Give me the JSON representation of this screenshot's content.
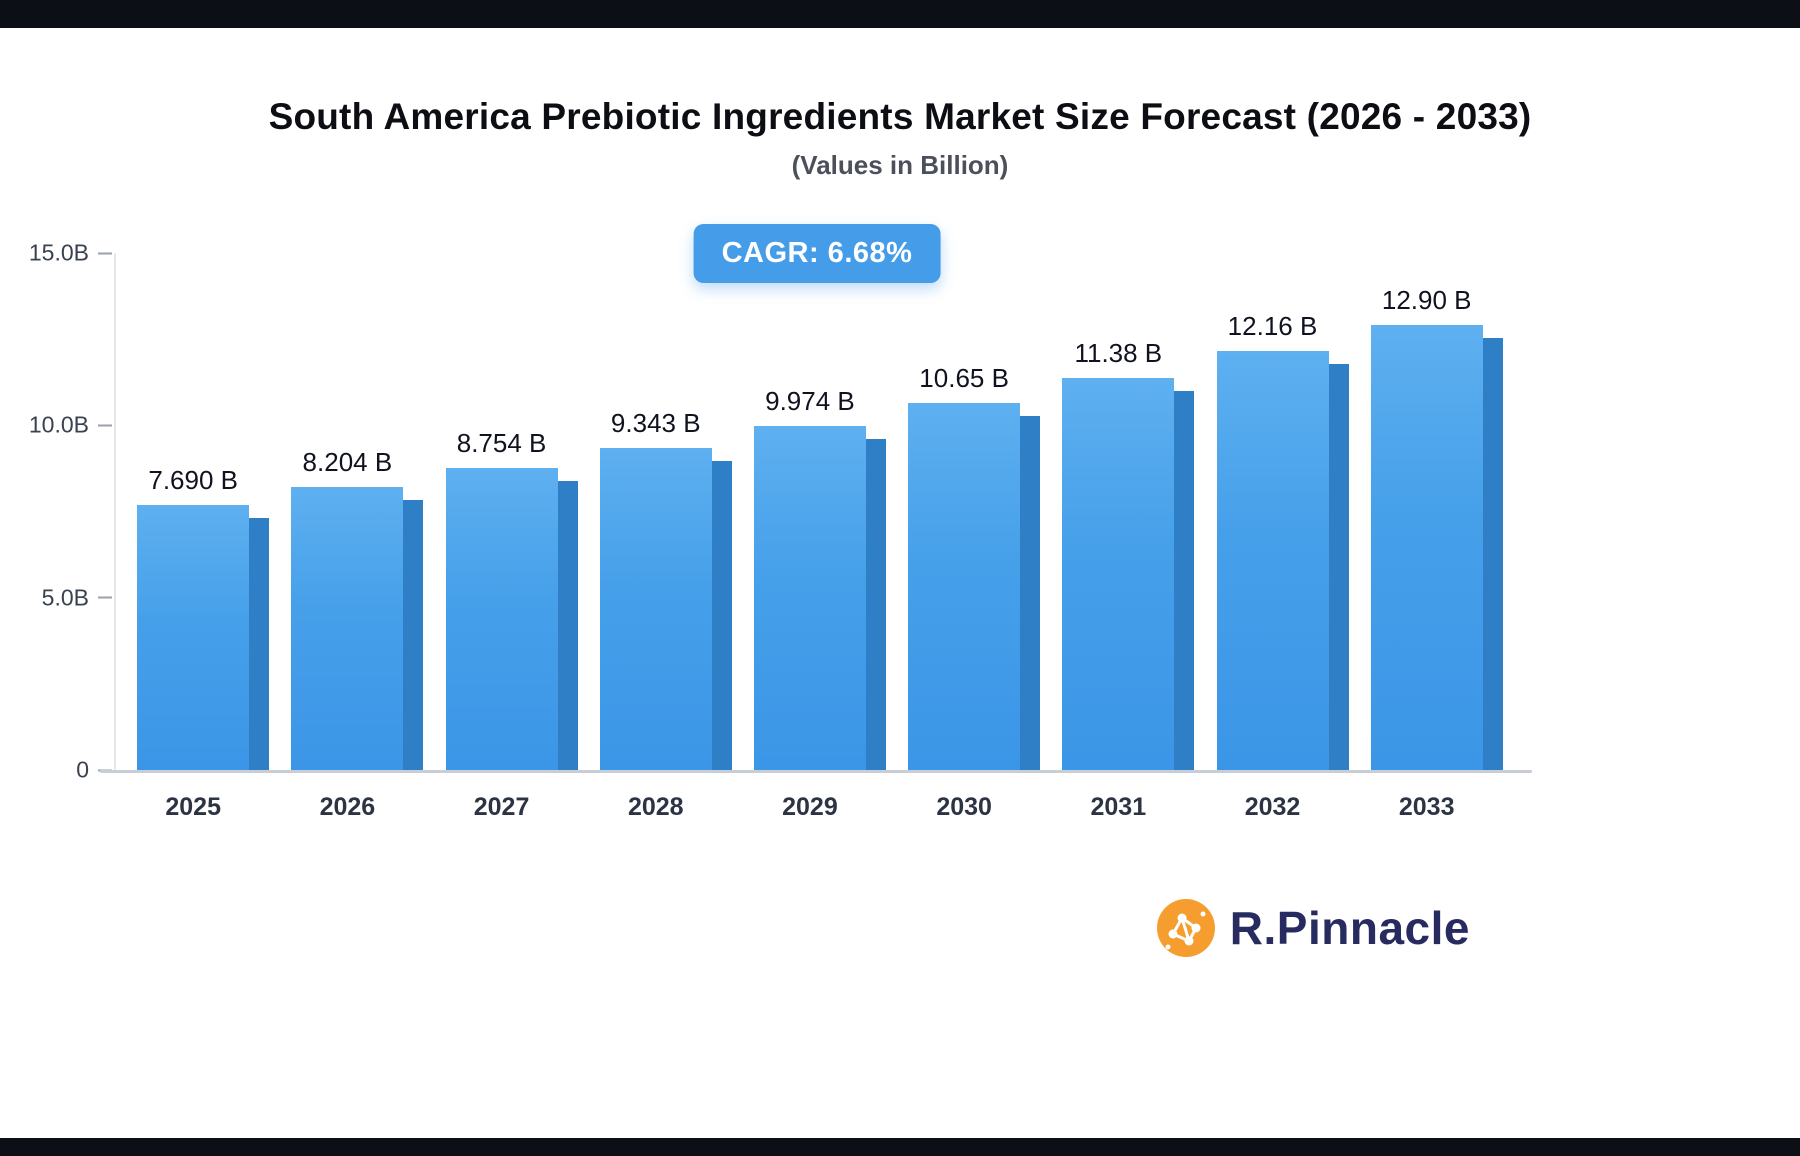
{
  "title": "South America Prebiotic Ingredients Market Size Forecast (2026 - 2033)",
  "subtitle": "(Values in Billion)",
  "cagr_badge": "CAGR: 6.68%",
  "chart_data": {
    "type": "bar",
    "title": "South America Prebiotic Ingredients Market Size Forecast (2026 - 2033)",
    "subtitle": "(Values in Billion)",
    "unit": "Billion (B)",
    "cagr": "6.68%",
    "categories": [
      "2025",
      "2026",
      "2027",
      "2028",
      "2029",
      "2030",
      "2031",
      "2032",
      "2033"
    ],
    "values": [
      7.69,
      8.204,
      8.754,
      9.343,
      9.974,
      10.65,
      11.38,
      12.16,
      12.9
    ],
    "value_labels": [
      "7.690 B",
      "8.204 B",
      "8.754 B",
      "9.343 B",
      "9.974 B",
      "10.65 B",
      "11.38 B",
      "12.16 B",
      "12.90 B"
    ],
    "ylim": [
      0,
      15
    ],
    "yticks": [
      {
        "value": 0,
        "label": "0"
      },
      {
        "value": 5,
        "label": "5.0B"
      },
      {
        "value": 10,
        "label": "10.0B"
      },
      {
        "value": 15,
        "label": "15.0B"
      }
    ],
    "grid": false,
    "legend": false,
    "colors": {
      "bar_front": "#459fe9",
      "bar_front_light": "#5eb0f0",
      "bar_side": "#2e7fc6",
      "axis_line": "#c9ced6",
      "tick_label": "#39424f",
      "value_label": "#10131f",
      "category_label": "#2c3444",
      "badge_bg": "#459ce9",
      "badge_text": "#ffffff"
    }
  },
  "branding": {
    "name": "R.Pinnacle",
    "icon": "network-molecule-icon",
    "icon_color": "#f59d2f",
    "text_color": "#282b5f"
  }
}
